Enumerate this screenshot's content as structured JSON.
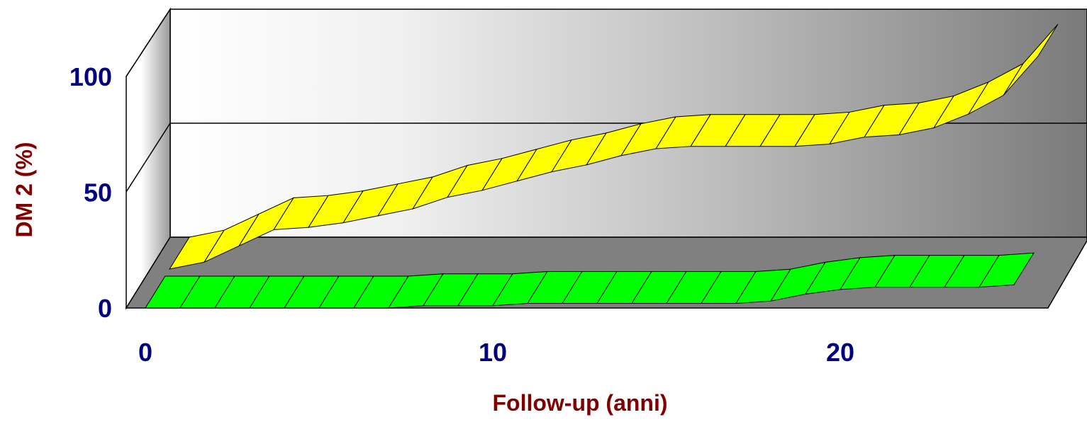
{
  "chart_data": {
    "type": "area",
    "title": "",
    "xlabel": "Follow-up (anni)",
    "ylabel": "DM 2 (%)",
    "xlim": [
      0,
      26
    ],
    "ylim": [
      0,
      100
    ],
    "x_ticks": [
      "0",
      "10",
      "20"
    ],
    "x_tick_values": [
      0,
      10,
      20
    ],
    "y_ticks": [
      "0",
      "50",
      "100"
    ],
    "y_tick_values": [
      0,
      50,
      100
    ],
    "grid": "horizontal",
    "style": "3d ribbons",
    "x": [
      0,
      1,
      2,
      3,
      4,
      5,
      6,
      7,
      8,
      9,
      10,
      11,
      12,
      13,
      14,
      15,
      16,
      17,
      18,
      19,
      20,
      21,
      22,
      23,
      24,
      25
    ],
    "series": [
      {
        "color": "#ffff00",
        "values": [
          0,
          3,
          10,
          17,
          18,
          20,
          23,
          26,
          31,
          34,
          38,
          42,
          45,
          49,
          52,
          53,
          53,
          53,
          53,
          54,
          57,
          58,
          61,
          67,
          75,
          92
        ]
      },
      {
        "color": "#00ff00",
        "values": [
          0,
          0,
          0,
          0,
          0,
          0,
          0,
          0,
          1,
          1,
          1,
          2,
          2,
          2,
          2,
          2,
          2,
          2,
          3,
          6,
          8,
          9,
          9,
          9,
          9,
          10
        ]
      }
    ]
  },
  "colors": {
    "tick_text": "#000080",
    "axis_title": "#800000",
    "outline": "#000000",
    "floor": "#808080"
  }
}
